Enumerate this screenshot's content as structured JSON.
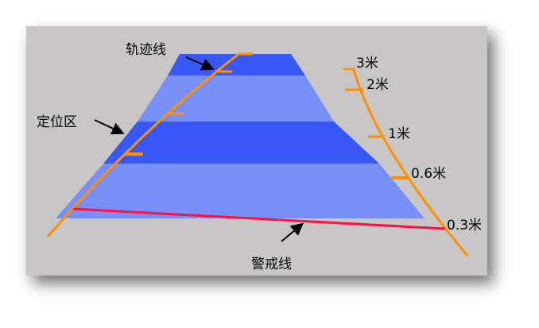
{
  "labels": {
    "track_line": "轨迹线",
    "positioning_zone": "定位区",
    "warning_line": "警戒线"
  },
  "distance_scale": [
    "3米",
    "2米",
    "1米",
    "0.6米",
    "0.3米"
  ],
  "colors": {
    "background": "#c8c6c7",
    "band_dark": "#3858f8",
    "band_light": "#7790f8",
    "track_line": "#ff9000",
    "warning_line": "#ff1040"
  }
}
